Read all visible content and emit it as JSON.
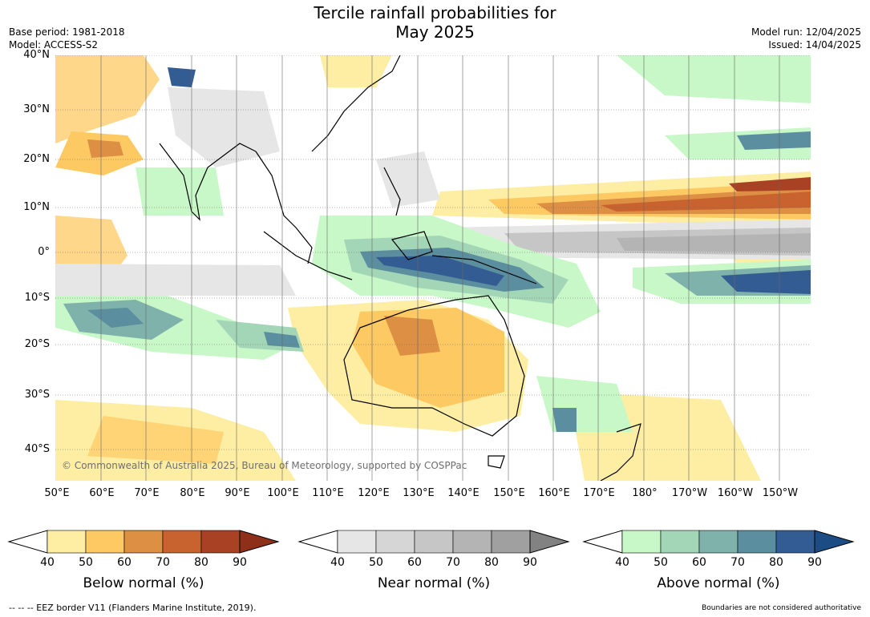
{
  "title": {
    "line1": "Tercile rainfall probabilities for",
    "line2": "May 2025"
  },
  "meta_left": {
    "base_period": "Base period: 1981-2018",
    "model": "Model: ACCESS-S2"
  },
  "meta_right": {
    "model_run": "Model run: 12/04/2025",
    "issued": "Issued: 14/04/2025"
  },
  "lat_labels": [
    "40°N",
    "30°N",
    "20°N",
    "10°N",
    "0°",
    "10°S",
    "20°S",
    "30°S",
    "40°S"
  ],
  "lon_labels": [
    "50°E",
    "60°E",
    "70°E",
    "80°E",
    "90°E",
    "100°E",
    "110°E",
    "120°E",
    "130°E",
    "140°E",
    "150°E",
    "160°E",
    "170°E",
    "180°",
    "170°W",
    "160°W",
    "150°W"
  ],
  "copyright": "© Commonwealth of Australia 2025, Bureau of Meteorology, supported by COSPPac",
  "colorbars": [
    {
      "title": "Below normal (%)",
      "ticks": [
        "40",
        "50",
        "60",
        "70",
        "80",
        "90"
      ],
      "colors": [
        "#fdeea3",
        "#fdc963",
        "#dd8f43",
        "#c8632f",
        "#a94225"
      ],
      "extend": "#8e3019"
    },
    {
      "title": "Near normal (%)",
      "ticks": [
        "40",
        "50",
        "60",
        "70",
        "80",
        "90"
      ],
      "colors": [
        "#e6e6e6",
        "#d6d6d6",
        "#c6c6c6",
        "#b4b4b4",
        "#a0a0a0"
      ],
      "extend": "#828282"
    },
    {
      "title": "Above normal (%)",
      "ticks": [
        "40",
        "50",
        "60",
        "70",
        "80",
        "90"
      ],
      "colors": [
        "#c8f7c8",
        "#a3d6b6",
        "#7fb2aa",
        "#5b8e9e",
        "#335d92"
      ],
      "extend": "#1c4c84"
    }
  ],
  "footer_left": "--  --  -- EEZ border V11 (Flanders Marine Institute, 2019).",
  "footer_right": "Boundaries are not considered authoritative"
}
